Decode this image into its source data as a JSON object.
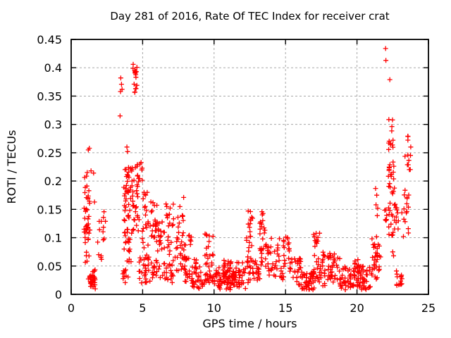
{
  "chart_data": {
    "type": "scatter",
    "title": "Day 281 of 2016, Rate Of TEC Index for receiver crat",
    "xlabel": "GPS time / hours",
    "ylabel": "ROTI / TECUs",
    "xlim": [
      0,
      25
    ],
    "ylim": [
      0,
      0.45
    ],
    "xticks": [
      0,
      5,
      10,
      15,
      20,
      25
    ],
    "xtick_labels": [
      "0",
      "5",
      "10",
      "15",
      "20",
      "25"
    ],
    "yticks": [
      0,
      0.05,
      0.1,
      0.15,
      0.2,
      0.25,
      0.3,
      0.35,
      0.4,
      0.45
    ],
    "ytick_labels": [
      "0",
      "0.05",
      "0.1",
      "0.15",
      "0.2",
      "0.25",
      "0.3",
      "0.35",
      "0.4",
      "0.45"
    ],
    "grid": true,
    "legend": "none",
    "marker": "plus",
    "marker_color": "#ff0000",
    "grid_color": "#a8a8a8",
    "axis_color": "#000000",
    "points_note": "points = individually readable markers [hours, ROTI]; point_clusters = dense overlapping marker regions read from the plot as {t:[t0,t1], v:[vmin,vmax], n:count}",
    "points": [
      [
        1.2,
        0.255
      ],
      [
        1.27,
        0.258
      ],
      [
        1.39,
        0.218
      ],
      [
        1.57,
        0.214
      ],
      [
        1.24,
        0.183
      ],
      [
        1.63,
        0.163
      ],
      [
        1.98,
        0.114
      ],
      [
        2.08,
        0.065
      ],
      [
        3.42,
        0.315
      ],
      [
        3.47,
        0.382
      ],
      [
        3.52,
        0.371
      ],
      [
        3.56,
        0.362
      ],
      [
        3.45,
        0.358
      ],
      [
        3.9,
        0.26
      ],
      [
        3.95,
        0.252
      ],
      [
        5.1,
        0.18
      ],
      [
        5.32,
        0.18
      ],
      [
        5.18,
        0.155
      ],
      [
        7.87,
        0.171
      ],
      [
        21.3,
        0.187
      ],
      [
        21.38,
        0.175
      ],
      [
        21.33,
        0.158
      ],
      [
        21.45,
        0.152
      ],
      [
        21.42,
        0.139
      ],
      [
        22.0,
        0.434
      ],
      [
        22.02,
        0.413
      ],
      [
        22.3,
        0.379
      ],
      [
        22.5,
        0.075
      ],
      [
        22.56,
        0.068
      ]
    ],
    "point_clusters": [
      {
        "t": [
          0.9,
          1.35
        ],
        "v": [
          0.09,
          0.155
        ],
        "n": 26
      },
      {
        "t": [
          0.92,
          1.3
        ],
        "v": [
          0.155,
          0.218
        ],
        "n": 12
      },
      {
        "t": [
          1.2,
          1.7
        ],
        "v": [
          0.007,
          0.045
        ],
        "n": 34
      },
      {
        "t": [
          0.95,
          1.25
        ],
        "v": [
          0.055,
          0.075
        ],
        "n": 5
      },
      {
        "t": [
          1.85,
          2.4
        ],
        "v": [
          0.08,
          0.15
        ],
        "n": 10
      },
      {
        "t": [
          1.9,
          2.2
        ],
        "v": [
          0.055,
          0.08
        ],
        "n": 3
      },
      {
        "t": [
          3.68,
          4.12
        ],
        "v": [
          0.1,
          0.205
        ],
        "n": 30
      },
      {
        "t": [
          3.7,
          4.05
        ],
        "v": [
          0.205,
          0.225
        ],
        "n": 8
      },
      {
        "t": [
          3.7,
          4.2
        ],
        "v": [
          0.055,
          0.1
        ],
        "n": 14
      },
      {
        "t": [
          3.6,
          4.05
        ],
        "v": [
          0.02,
          0.05
        ],
        "n": 10
      },
      {
        "t": [
          4.3,
          4.62
        ],
        "v": [
          0.383,
          0.408
        ],
        "n": 11
      },
      {
        "t": [
          4.3,
          4.6
        ],
        "v": [
          0.355,
          0.38
        ],
        "n": 6
      },
      {
        "t": [
          4.15,
          4.65
        ],
        "v": [
          0.16,
          0.23
        ],
        "n": 16
      },
      {
        "t": [
          4.2,
          4.7
        ],
        "v": [
          0.1,
          0.16
        ],
        "n": 12
      },
      {
        "t": [
          4.6,
          5.05
        ],
        "v": [
          0.185,
          0.235
        ],
        "n": 12
      },
      {
        "t": [
          4.6,
          5.3
        ],
        "v": [
          0.13,
          0.185
        ],
        "n": 12
      },
      {
        "t": [
          4.7,
          5.45
        ],
        "v": [
          0.02,
          0.07
        ],
        "n": 28
      },
      {
        "t": [
          4.9,
          5.45
        ],
        "v": [
          0.07,
          0.13
        ],
        "n": 10
      },
      {
        "t": [
          5.5,
          6.05
        ],
        "v": [
          0.1,
          0.165
        ],
        "n": 16
      },
      {
        "t": [
          5.85,
          6.6
        ],
        "v": [
          0.075,
          0.135
        ],
        "n": 24
      },
      {
        "t": [
          6.6,
          7.25
        ],
        "v": [
          0.07,
          0.16
        ],
        "n": 20
      },
      {
        "t": [
          5.5,
          7.3
        ],
        "v": [
          0.02,
          0.07
        ],
        "n": 40
      },
      {
        "t": [
          7.35,
          7.9
        ],
        "v": [
          0.125,
          0.155
        ],
        "n": 7
      },
      {
        "t": [
          7.35,
          8.05
        ],
        "v": [
          0.04,
          0.125
        ],
        "n": 28
      },
      {
        "t": [
          7.95,
          8.45
        ],
        "v": [
          0.02,
          0.105
        ],
        "n": 22
      },
      {
        "t": [
          8.45,
          9.25
        ],
        "v": [
          0.01,
          0.05
        ],
        "n": 30
      },
      {
        "t": [
          8.55,
          9.0
        ],
        "v": [
          0.05,
          0.062
        ],
        "n": 4
      },
      {
        "t": [
          9.35,
          9.95
        ],
        "v": [
          0.055,
          0.107
        ],
        "n": 16
      },
      {
        "t": [
          9.3,
          9.95
        ],
        "v": [
          0.015,
          0.055
        ],
        "n": 22
      },
      {
        "t": [
          10.0,
          11.6
        ],
        "v": [
          0.008,
          0.048
        ],
        "n": 85
      },
      {
        "t": [
          10.6,
          11.2
        ],
        "v": [
          0.048,
          0.062
        ],
        "n": 9
      },
      {
        "t": [
          11.6,
          12.2
        ],
        "v": [
          0.01,
          0.06
        ],
        "n": 24
      },
      {
        "t": [
          12.25,
          12.7
        ],
        "v": [
          0.06,
          0.148
        ],
        "n": 20
      },
      {
        "t": [
          12.3,
          12.75
        ],
        "v": [
          0.02,
          0.06
        ],
        "n": 14
      },
      {
        "t": [
          12.7,
          13.2
        ],
        "v": [
          0.02,
          0.065
        ],
        "n": 16
      },
      {
        "t": [
          13.2,
          13.62
        ],
        "v": [
          0.05,
          0.128
        ],
        "n": 22
      },
      {
        "t": [
          13.3,
          13.55
        ],
        "v": [
          0.128,
          0.147
        ],
        "n": 4
      },
      {
        "t": [
          13.6,
          14.05
        ],
        "v": [
          0.03,
          0.09
        ],
        "n": 14
      },
      {
        "t": [
          14.0,
          14.6
        ],
        "v": [
          0.025,
          0.1
        ],
        "n": 18
      },
      {
        "t": [
          14.85,
          15.3
        ],
        "v": [
          0.04,
          0.107
        ],
        "n": 18
      },
      {
        "t": [
          14.6,
          14.95
        ],
        "v": [
          0.02,
          0.05
        ],
        "n": 8
      },
      {
        "t": [
          15.3,
          16.1
        ],
        "v": [
          0.015,
          0.065
        ],
        "n": 32
      },
      {
        "t": [
          16.1,
          17.0
        ],
        "v": [
          0.008,
          0.04
        ],
        "n": 44
      },
      {
        "t": [
          16.95,
          17.4
        ],
        "v": [
          0.055,
          0.11
        ],
        "n": 14
      },
      {
        "t": [
          16.9,
          17.45
        ],
        "v": [
          0.02,
          0.055
        ],
        "n": 14
      },
      {
        "t": [
          17.45,
          18.6
        ],
        "v": [
          0.015,
          0.075
        ],
        "n": 42
      },
      {
        "t": [
          18.6,
          20.95
        ],
        "v": [
          0.008,
          0.05
        ],
        "n": 100
      },
      {
        "t": [
          18.3,
          18.9
        ],
        "v": [
          0.05,
          0.065
        ],
        "n": 7
      },
      {
        "t": [
          19.75,
          20.3
        ],
        "v": [
          0.045,
          0.065
        ],
        "n": 9
      },
      {
        "t": [
          20.95,
          21.65
        ],
        "v": [
          0.025,
          0.075
        ],
        "n": 26
      },
      {
        "t": [
          21.05,
          21.6
        ],
        "v": [
          0.075,
          0.11
        ],
        "n": 9
      },
      {
        "t": [
          22.1,
          22.55
        ],
        "v": [
          0.255,
          0.312
        ],
        "n": 12
      },
      {
        "t": [
          22.2,
          22.62
        ],
        "v": [
          0.21,
          0.252
        ],
        "n": 10
      },
      {
        "t": [
          22.2,
          22.62
        ],
        "v": [
          0.15,
          0.21
        ],
        "n": 13
      },
      {
        "t": [
          22.0,
          22.6
        ],
        "v": [
          0.1,
          0.15
        ],
        "n": 11
      },
      {
        "t": [
          21.9,
          22.15
        ],
        "v": [
          0.13,
          0.155
        ],
        "n": 5
      },
      {
        "t": [
          22.75,
          23.25
        ],
        "v": [
          0.015,
          0.042
        ],
        "n": 14
      },
      {
        "t": [
          22.6,
          23.1
        ],
        "v": [
          0.115,
          0.168
        ],
        "n": 11
      },
      {
        "t": [
          23.35,
          23.78
        ],
        "v": [
          0.22,
          0.285
        ],
        "n": 12
      },
      {
        "t": [
          23.3,
          23.7
        ],
        "v": [
          0.168,
          0.19
        ],
        "n": 5
      },
      {
        "t": [
          23.1,
          23.68
        ],
        "v": [
          0.1,
          0.16
        ],
        "n": 11
      }
    ]
  }
}
